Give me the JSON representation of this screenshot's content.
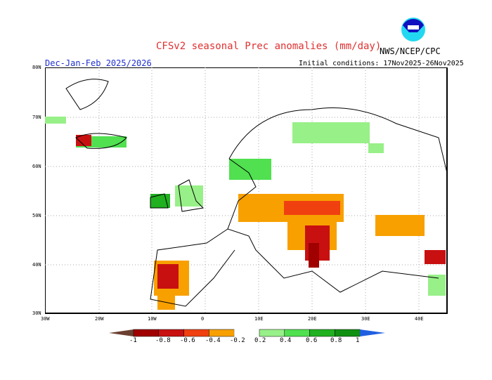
{
  "header": {
    "title": "CFSv2 seasonal Prec anomalies (mm/day)",
    "agency": "NWS/NCEP/CPC",
    "season": "Dec-Jan-Feb 2025/2026",
    "initial_conditions": "Initial conditions: 17Nov2025-26Nov2025",
    "logo_text": "NOAA"
  },
  "map": {
    "lat_ticks": [
      "80N",
      "70N",
      "60N",
      "50N",
      "40N",
      "30N"
    ],
    "lon_ticks": [
      "30W",
      "20W",
      "10W",
      "0",
      "10E",
      "20E",
      "30E",
      "40E"
    ]
  },
  "colorbar": {
    "labels": [
      "-1",
      "-0.8",
      "-0.6",
      "-0.4",
      "-0.2",
      "0.2",
      "0.4",
      "0.6",
      "0.8",
      "1"
    ],
    "colors": [
      "#6b4030",
      "#a00000",
      "#c81010",
      "#f04010",
      "#f8a000",
      "#ffffff",
      "#98f088",
      "#50e050",
      "#20b020",
      "#109010",
      "#2060e0"
    ]
  }
}
